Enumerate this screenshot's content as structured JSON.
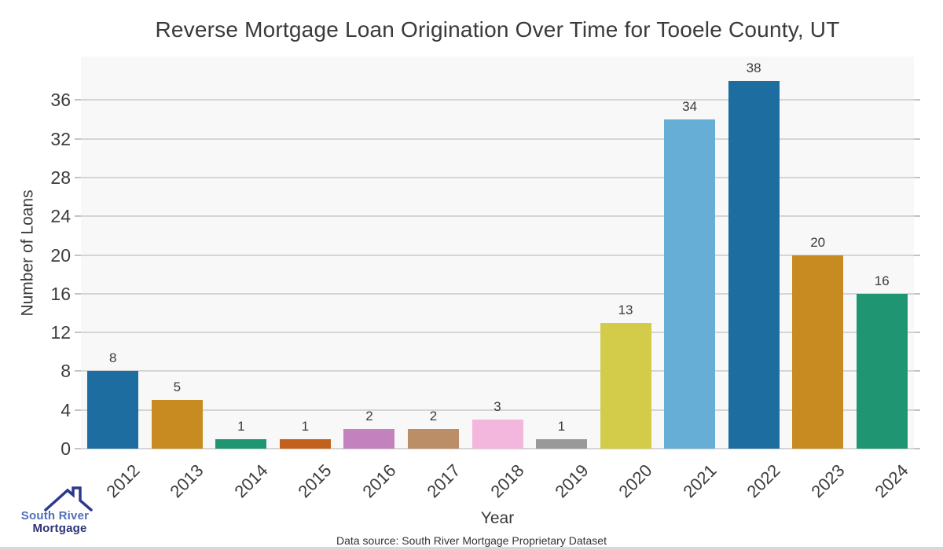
{
  "chart_data": {
    "type": "bar",
    "title": "Reverse Mortgage Loan Origination Over Time for Tooele County, UT",
    "xlabel": "Year",
    "ylabel": "Number of Loans",
    "categories": [
      "2012",
      "2013",
      "2014",
      "2015",
      "2016",
      "2017",
      "2018",
      "2019",
      "2020",
      "2021",
      "2022",
      "2023",
      "2024"
    ],
    "values": [
      8,
      5,
      1,
      1,
      2,
      2,
      3,
      1,
      13,
      34,
      38,
      20,
      16
    ],
    "bar_colors": [
      "#1d6da1",
      "#c78b22",
      "#1f9571",
      "#c2611e",
      "#c382be",
      "#bb8e68",
      "#f3b7dd",
      "#999999",
      "#d3cc4a",
      "#67aed7",
      "#1d6da1",
      "#c78b22",
      "#1f9571"
    ],
    "yticks": [
      0,
      4,
      8,
      12,
      16,
      20,
      24,
      28,
      32,
      36
    ],
    "ylim": [
      0,
      40.5
    ],
    "grid": "horizontal",
    "value_labels": true,
    "legend": "none"
  },
  "footer": {
    "source_text": "Data source: South River Mortgage Proprietary Dataset"
  },
  "logo": {
    "line1": "South River",
    "line2": "Mortgage",
    "line1_color": "#4f6fba",
    "line2_color": "#2c3377",
    "house_color": "#2b3a8c"
  },
  "colors": {
    "plot_bg": "#f8f8f8",
    "gridline": "#d5d5d5",
    "tick": "#c4c4c4",
    "text": "#3d3d3d"
  }
}
